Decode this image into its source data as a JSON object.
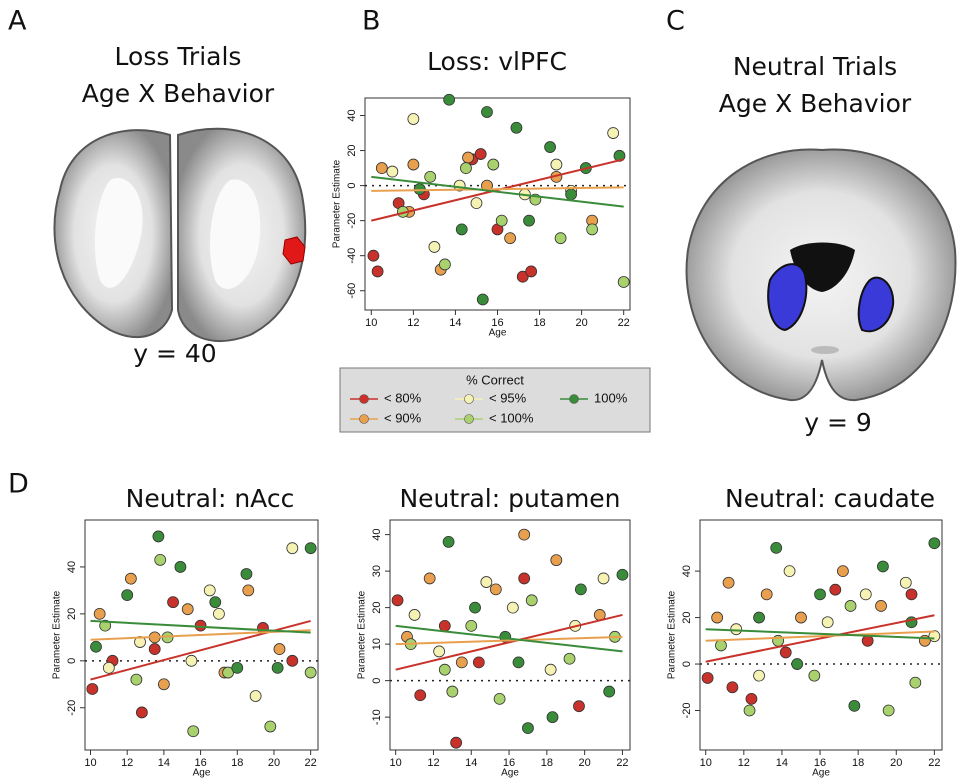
{
  "panel_labels": [
    "A",
    "B",
    "C",
    "D"
  ],
  "brain_panels": [
    {
      "title_lines": [
        "Loss Trials",
        "Age X Behavior"
      ],
      "slice": "y = 40"
    },
    {
      "title_lines": [
        "Neutral Trials",
        "Age X Behavior"
      ],
      "slice": "y = 9"
    }
  ],
  "chart_data": [
    {
      "type": "scatter",
      "title": "Loss: vlPFC",
      "xlabel": "Age",
      "ylabel": "Parameter Estimate",
      "xlim": [
        9.7,
        22.3
      ],
      "ylim": [
        -71,
        50
      ],
      "xticks": [
        10,
        12,
        14,
        16,
        18,
        20,
        22
      ],
      "yticks": [
        -60,
        -40,
        -20,
        0,
        20,
        40
      ],
      "hline": 0,
      "legend": {
        "title": "% Correct"
      },
      "series": [
        {
          "name": "< 80%",
          "color": "#c8322a",
          "x": [
            10.1,
            10.3,
            11.3,
            14.8,
            15.2,
            17.2,
            17.6,
            12.5,
            16.0
          ],
          "values": [
            -40,
            -49,
            -10,
            15,
            18,
            -52,
            -49,
            -5,
            -25
          ],
          "fit": {
            "x": [
              10,
              22
            ],
            "y": [
              -20,
              15
            ]
          }
        },
        {
          "name": "< 90%",
          "color": "#e9a04e",
          "x": [
            10.5,
            11.8,
            13.3,
            14.6,
            16.6,
            18.8,
            20.5,
            12.0,
            15.5
          ],
          "values": [
            10,
            -15,
            -48,
            16,
            -30,
            5,
            -20,
            12,
            0
          ],
          "fit": {
            "x": [
              10,
              22
            ],
            "y": [
              -3,
              -1
            ]
          }
        },
        {
          "name": "< 95%",
          "color": "#f6f2b4",
          "x": [
            12.0,
            13.0,
            15.0,
            17.3,
            18.8,
            21.5,
            14.2,
            19.5,
            11.0
          ],
          "values": [
            38,
            -35,
            -10,
            -5,
            12,
            30,
            0,
            -3,
            8
          ]
        },
        {
          "name": "< 100%",
          "color": "#a9d26e",
          "x": [
            11.5,
            13.5,
            14.5,
            16.2,
            17.8,
            19.0,
            20.5,
            22.0,
            12.8,
            15.8
          ],
          "values": [
            -15,
            -45,
            10,
            -20,
            -8,
            -30,
            -25,
            -55,
            5,
            12
          ]
        },
        {
          "name": "100%",
          "color": "#3a8c3a",
          "x": [
            13.7,
            15.5,
            16.9,
            18.5,
            20.2,
            21.8,
            14.3,
            17.5,
            19.5,
            12.3,
            15.3
          ],
          "values": [
            49,
            42,
            33,
            22,
            10,
            17,
            -25,
            -20,
            -5,
            -2,
            -65
          ],
          "fit": {
            "x": [
              10,
              22
            ],
            "y": [
              5,
              -12
            ]
          }
        }
      ]
    },
    {
      "type": "scatter",
      "title": "Neutral: nAcc",
      "xlabel": "Age",
      "ylabel": "Parameter Estimate",
      "xlim": [
        9.7,
        22.4
      ],
      "ylim": [
        -38,
        60
      ],
      "xticks": [
        10,
        12,
        14,
        16,
        18,
        20,
        22
      ],
      "yticks": [
        -20,
        0,
        20,
        40
      ],
      "hline": 0,
      "series": [
        {
          "color": "#c8322a",
          "x": [
            10.1,
            11.2,
            12.8,
            14.5,
            16.0,
            19.4,
            21.0,
            13.5
          ],
          "values": [
            -12,
            0,
            -22,
            25,
            15,
            14,
            0,
            5
          ],
          "fit": {
            "x": [
              10,
              22
            ],
            "y": [
              -8,
              17
            ]
          }
        },
        {
          "color": "#e9a04e",
          "x": [
            10.5,
            12.2,
            13.5,
            15.3,
            17.3,
            18.6,
            20.3,
            14.0
          ],
          "values": [
            20,
            35,
            10,
            22,
            -5,
            30,
            5,
            -10
          ],
          "fit": {
            "x": [
              10,
              22
            ],
            "y": [
              9,
              13
            ]
          }
        },
        {
          "color": "#f6f2b4",
          "x": [
            11.0,
            12.7,
            15.5,
            17.0,
            19.0,
            21.0,
            16.5
          ],
          "values": [
            -3,
            8,
            0,
            20,
            -15,
            48,
            30
          ]
        },
        {
          "color": "#a9d26e",
          "x": [
            10.8,
            12.5,
            13.8,
            15.6,
            17.5,
            19.8,
            22.0,
            14.2
          ],
          "values": [
            15,
            -8,
            43,
            -30,
            -5,
            -28,
            -5,
            10
          ]
        },
        {
          "color": "#3a8c3a",
          "x": [
            10.3,
            13.7,
            14.9,
            16.8,
            18.5,
            20.2,
            22.0,
            12.0,
            18.0
          ],
          "values": [
            6,
            53,
            40,
            25,
            37,
            -3,
            48,
            28,
            -3
          ],
          "fit": {
            "x": [
              10,
              22
            ],
            "y": [
              17,
              12
            ]
          }
        }
      ]
    },
    {
      "type": "scatter",
      "title": "Neutral: putamen",
      "xlabel": "Age",
      "ylabel": "Parameter Estimate",
      "xlim": [
        9.7,
        22.4
      ],
      "ylim": [
        -19,
        44
      ],
      "xticks": [
        10,
        12,
        14,
        16,
        18,
        20,
        22
      ],
      "yticks": [
        -10,
        0,
        10,
        20,
        30,
        40
      ],
      "hline": 0,
      "series": [
        {
          "color": "#c8322a",
          "x": [
            10.1,
            11.3,
            12.6,
            13.2,
            16.8,
            19.7,
            14.4
          ],
          "values": [
            22,
            -4,
            15,
            -17,
            28,
            -7,
            5
          ],
          "fit": {
            "x": [
              10,
              22
            ],
            "y": [
              3,
              18
            ]
          }
        },
        {
          "color": "#e9a04e",
          "x": [
            10.6,
            11.8,
            13.5,
            15.3,
            16.8,
            18.5,
            20.8
          ],
          "values": [
            12,
            28,
            5,
            25,
            40,
            33,
            18
          ],
          "fit": {
            "x": [
              10,
              22
            ],
            "y": [
              10,
              12
            ]
          }
        },
        {
          "color": "#f6f2b4",
          "x": [
            11.0,
            12.3,
            14.8,
            16.2,
            18.2,
            19.5,
            21.0
          ],
          "values": [
            18,
            8,
            27,
            20,
            3,
            15,
            28
          ]
        },
        {
          "color": "#a9d26e",
          "x": [
            10.8,
            12.6,
            14.0,
            15.5,
            17.2,
            19.2,
            21.6,
            13.0
          ],
          "values": [
            10,
            3,
            15,
            -5,
            22,
            6,
            12,
            -3
          ]
        },
        {
          "color": "#3a8c3a",
          "x": [
            12.8,
            14.2,
            15.8,
            17.0,
            18.3,
            19.8,
            21.3,
            22.0,
            16.5
          ],
          "values": [
            38,
            20,
            12,
            -13,
            -10,
            25,
            -3,
            29,
            5
          ],
          "fit": {
            "x": [
              10,
              22
            ],
            "y": [
              15,
              8
            ]
          }
        }
      ]
    },
    {
      "type": "scatter",
      "title": "Neutral: caudate",
      "xlabel": "Age",
      "ylabel": "Parameter Estimate",
      "xlim": [
        9.7,
        22.4
      ],
      "ylim": [
        -37,
        62
      ],
      "xticks": [
        10,
        12,
        14,
        16,
        18,
        20,
        22
      ],
      "yticks": [
        -20,
        0,
        20,
        40
      ],
      "hline": 0,
      "series": [
        {
          "color": "#c8322a",
          "x": [
            10.1,
            11.4,
            12.4,
            16.8,
            18.5,
            20.8,
            14.2
          ],
          "values": [
            -6,
            -10,
            -15,
            32,
            10,
            30,
            5
          ],
          "fit": {
            "x": [
              10,
              22
            ],
            "y": [
              1,
              21
            ]
          }
        },
        {
          "color": "#e9a04e",
          "x": [
            10.6,
            11.2,
            13.2,
            15.0,
            17.2,
            19.2,
            21.5
          ],
          "values": [
            20,
            35,
            30,
            20,
            40,
            25,
            10
          ],
          "fit": {
            "x": [
              10,
              22
            ],
            "y": [
              10,
              14
            ]
          }
        },
        {
          "color": "#f6f2b4",
          "x": [
            11.6,
            12.8,
            14.4,
            16.4,
            18.4,
            20.5,
            22.0
          ],
          "values": [
            15,
            -5,
            40,
            18,
            30,
            35,
            12
          ]
        },
        {
          "color": "#a9d26e",
          "x": [
            10.8,
            12.3,
            13.8,
            15.7,
            17.6,
            19.6,
            21.0
          ],
          "values": [
            8,
            -20,
            10,
            -5,
            25,
            -20,
            -8
          ]
        },
        {
          "color": "#3a8c3a",
          "x": [
            13.7,
            14.8,
            16.0,
            17.8,
            19.3,
            20.8,
            22.0,
            12.8
          ],
          "values": [
            50,
            0,
            30,
            -18,
            42,
            18,
            52,
            20
          ],
          "fit": {
            "x": [
              10,
              22
            ],
            "y": [
              15,
              11
            ]
          }
        }
      ]
    }
  ]
}
